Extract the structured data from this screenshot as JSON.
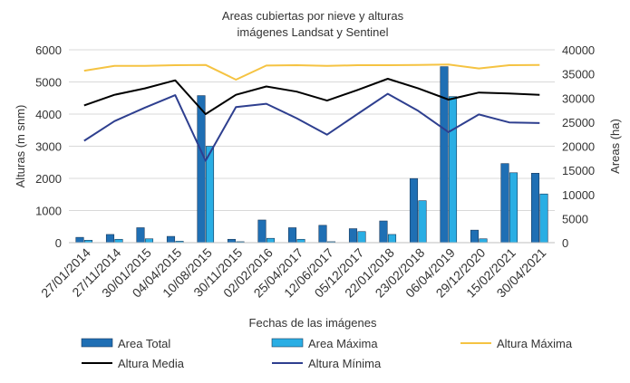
{
  "chart_data": {
    "type": "bar+line",
    "title_lines": [
      "Areas cubiertas por nieve y alturas",
      "imágenes  Landsat y Sentinel"
    ],
    "xlabel": "Fechas de las imágenes",
    "ylabel_left": "Alturas (m snm)",
    "ylabel_right": "Areas (ha)",
    "ylim_left": [
      0,
      6000
    ],
    "ylim_right": [
      0,
      40000
    ],
    "yticks_left": [
      "0",
      "1000",
      "2000",
      "3000",
      "4000",
      "5000",
      "6000"
    ],
    "yticks_right": [
      "0",
      "5000",
      "10000",
      "15000",
      "20000",
      "25000",
      "30000",
      "35000",
      "40000"
    ],
    "categories": [
      "27/01/2014",
      "27/11/2014",
      "30/01/2015",
      "04/04/2015",
      "10/08/2015",
      "30/11/2015",
      "02/02/2016",
      "25/04/2017",
      "12/06/2017",
      "05/12/2017",
      "22/01/2018",
      "23/02/2018",
      "06/04/2019",
      "29/12/2020",
      "15/02/2021",
      "30/04/2021"
    ],
    "bar_series": [
      {
        "name": "Area Total",
        "axis": "right",
        "color": "#1f6fb4",
        "values": [
          1100,
          1700,
          3100,
          1300,
          30500,
          700,
          4700,
          3100,
          3600,
          2900,
          4500,
          13300,
          36500,
          2600,
          16400,
          14400
        ]
      },
      {
        "name": "Area Máxima",
        "axis": "right",
        "color": "#2aaee4",
        "values": [
          500,
          700,
          800,
          300,
          20000,
          200,
          900,
          700,
          200,
          2300,
          1700,
          8700,
          30300,
          800,
          14500,
          10100
        ]
      }
    ],
    "line_series": [
      {
        "name": "Altura Máxima",
        "axis": "left",
        "color": "#f5c342",
        "values": [
          5350,
          5500,
          5500,
          5520,
          5530,
          5070,
          5510,
          5520,
          5500,
          5520,
          5520,
          5530,
          5540,
          5420,
          5520,
          5530
        ]
      },
      {
        "name": "Altura Media",
        "axis": "left",
        "color": "#000000",
        "values": [
          4270,
          4600,
          4800,
          5050,
          4000,
          4600,
          4860,
          4700,
          4420,
          4750,
          5100,
          4800,
          4450,
          4670,
          4640,
          4600
        ]
      },
      {
        "name": "Altura Mínima",
        "axis": "left",
        "color": "#2e3f8f",
        "values": [
          3170,
          3780,
          4200,
          4590,
          2550,
          4220,
          4320,
          3870,
          3360,
          4000,
          4630,
          4100,
          3440,
          3990,
          3740,
          3720
        ]
      }
    ],
    "legend": [
      "Area Total",
      "Area Máxima",
      "Altura Máxima",
      "Altura Media",
      "Altura Mínima"
    ],
    "legend_position": "bottom"
  }
}
